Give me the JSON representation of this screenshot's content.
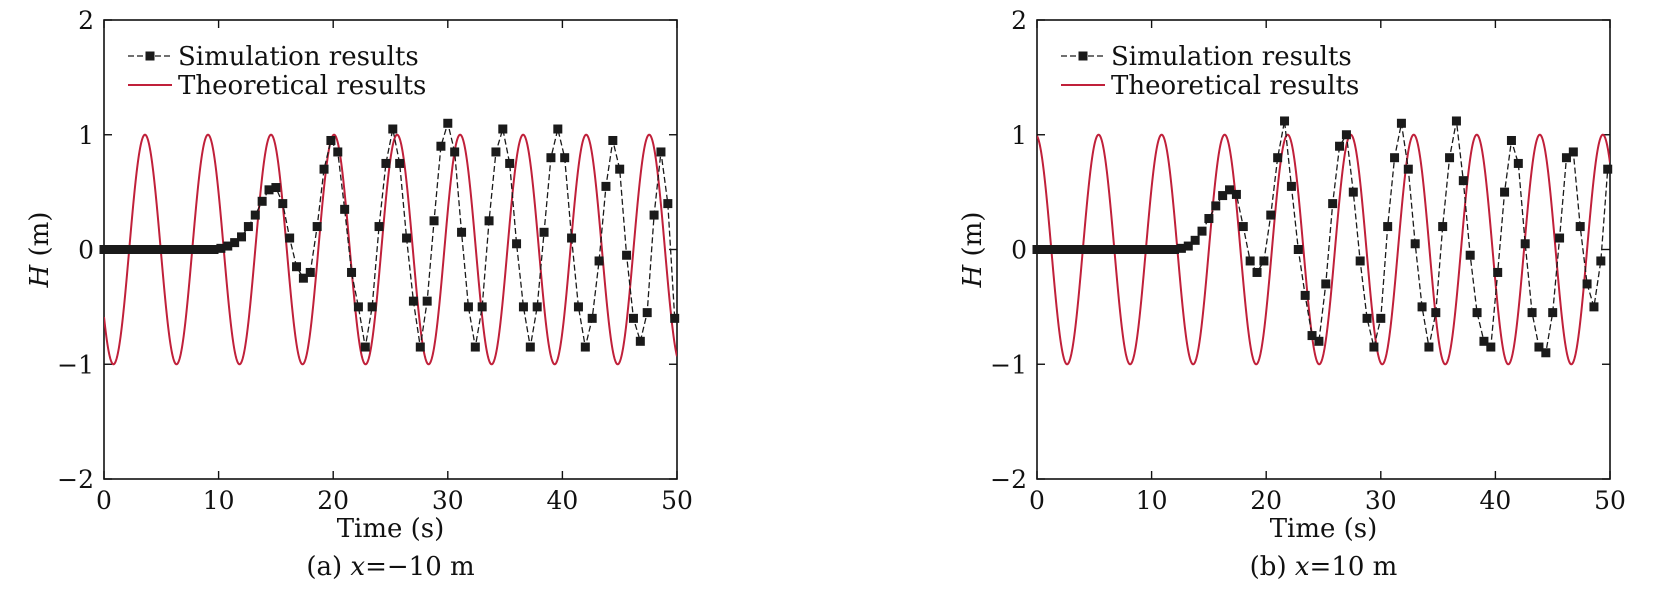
{
  "chart_data": [
    {
      "type": "line",
      "caption_prefix": "(a) ",
      "caption_var": "x",
      "caption_rest": "=−10 m",
      "xlabel": "Time (s)",
      "ylabel_var": "H",
      "ylabel_unit": " (m)",
      "xlim": [
        0,
        50
      ],
      "ylim": [
        -2,
        2
      ],
      "xticks": [
        "0",
        "10",
        "20",
        "30",
        "40",
        "50"
      ],
      "yticks": [
        "−2",
        "−1",
        "0",
        "1",
        "2"
      ],
      "grid": false,
      "legend_position": "top-left",
      "series": [
        {
          "name": "Simulation results",
          "color": "#1a1a1a",
          "marker": "square",
          "x": [
            0,
            0.6,
            1.2,
            1.8,
            2.4,
            3,
            3.6,
            4.2,
            4.8,
            5.4,
            6,
            6.6,
            7.2,
            7.8,
            8.4,
            9,
            9.6,
            10.2,
            10.8,
            11.4,
            12,
            12.6,
            13.2,
            13.8,
            14.4,
            15,
            15.6,
            16.2,
            16.8,
            17.4,
            18,
            18.6,
            19.2,
            19.8,
            20.4,
            21,
            21.6,
            22.2,
            22.8,
            23.4,
            24,
            24.6,
            25.2,
            25.8,
            26.4,
            27,
            27.6,
            28.2,
            28.8,
            29.4,
            30,
            30.6,
            31.2,
            31.8,
            32.4,
            33,
            33.6,
            34.2,
            34.8,
            35.4,
            36,
            36.6,
            37.2,
            37.8,
            38.4,
            39,
            39.6,
            40.2,
            40.8,
            41.4,
            42,
            42.6,
            43.2,
            43.8,
            44.4,
            45,
            45.6,
            46.2,
            46.8,
            47.4,
            48,
            48.6,
            49.2,
            49.8
          ],
          "y": [
            0,
            0,
            0,
            0,
            0,
            0,
            0,
            0,
            0,
            0,
            0,
            0,
            0,
            0,
            0,
            0,
            0,
            0.01,
            0.03,
            0.06,
            0.11,
            0.2,
            0.3,
            0.42,
            0.52,
            0.54,
            0.4,
            0.1,
            -0.15,
            -0.25,
            -0.2,
            0.2,
            0.7,
            0.95,
            0.85,
            0.35,
            -0.2,
            -0.5,
            -0.85,
            -0.5,
            0.2,
            0.75,
            1.05,
            0.75,
            0.1,
            -0.45,
            -0.85,
            -0.45,
            0.25,
            0.9,
            1.1,
            0.85,
            0.15,
            -0.5,
            -0.85,
            -0.5,
            0.25,
            0.85,
            1.05,
            0.75,
            0.05,
            -0.5,
            -0.85,
            -0.5,
            0.15,
            0.8,
            1.05,
            0.8,
            0.1,
            -0.5,
            -0.85,
            -0.6,
            -0.1,
            0.55,
            0.95,
            0.7,
            -0.05,
            -0.6,
            -0.8,
            -0.55,
            0.3,
            0.85,
            0.4,
            -0.6
          ],
          "values_approximate": true
        },
        {
          "name": "Theoretical results",
          "color": "#c0203a",
          "marker": "none",
          "function": "H = sin(2π(t − 2.2)/5.5)",
          "amplitude": 1,
          "period_s": 5.5,
          "phase_shift_s": 2.2
        }
      ]
    },
    {
      "type": "line",
      "caption_prefix": "(b) ",
      "caption_var": "x",
      "caption_rest": "=10 m",
      "xlabel": "Time (s)",
      "ylabel_var": "H",
      "ylabel_unit": " (m)",
      "xlim": [
        0,
        50
      ],
      "ylim": [
        -2,
        2
      ],
      "xticks": [
        "0",
        "10",
        "20",
        "30",
        "40",
        "50"
      ],
      "yticks": [
        "−2",
        "−1",
        "0",
        "1",
        "2"
      ],
      "grid": false,
      "legend_position": "top-left",
      "series": [
        {
          "name": "Simulation results",
          "color": "#1a1a1a",
          "marker": "square",
          "x": [
            0,
            0.6,
            1.2,
            1.8,
            2.4,
            3,
            3.6,
            4.2,
            4.8,
            5.4,
            6,
            6.6,
            7.2,
            7.8,
            8.4,
            9,
            9.6,
            10.2,
            10.8,
            11.4,
            12,
            12.6,
            13.2,
            13.8,
            14.4,
            15,
            15.6,
            16.2,
            16.8,
            17.4,
            18,
            18.6,
            19.2,
            19.8,
            20.4,
            21,
            21.6,
            22.2,
            22.8,
            23.4,
            24,
            24.6,
            25.2,
            25.8,
            26.4,
            27,
            27.6,
            28.2,
            28.8,
            29.4,
            30,
            30.6,
            31.2,
            31.8,
            32.4,
            33,
            33.6,
            34.2,
            34.8,
            35.4,
            36,
            36.6,
            37.2,
            37.8,
            38.4,
            39,
            39.6,
            40.2,
            40.8,
            41.4,
            42,
            42.6,
            43.2,
            43.8,
            44.4,
            45,
            45.6,
            46.2,
            46.8,
            47.4,
            48,
            48.6,
            49.2,
            49.8
          ],
          "y": [
            0,
            0,
            0,
            0,
            0,
            0,
            0,
            0,
            0,
            0,
            0,
            0,
            0,
            0,
            0,
            0,
            0,
            0,
            0,
            0,
            0,
            0.01,
            0.03,
            0.08,
            0.16,
            0.27,
            0.38,
            0.47,
            0.52,
            0.48,
            0.2,
            -0.1,
            -0.2,
            -0.1,
            0.3,
            0.8,
            1.12,
            0.55,
            0.0,
            -0.4,
            -0.75,
            -0.8,
            -0.3,
            0.4,
            0.9,
            1.0,
            0.5,
            -0.1,
            -0.6,
            -0.85,
            -0.6,
            0.2,
            0.8,
            1.1,
            0.7,
            0.05,
            -0.5,
            -0.85,
            -0.55,
            0.2,
            0.8,
            1.12,
            0.6,
            -0.05,
            -0.55,
            -0.8,
            -0.85,
            -0.2,
            0.5,
            0.95,
            0.75,
            0.05,
            -0.55,
            -0.85,
            -0.9,
            -0.55,
            0.1,
            0.8,
            0.85,
            0.2,
            -0.3,
            -0.5,
            -0.1,
            0.7
          ],
          "values_approximate": true
        },
        {
          "name": "Theoretical results",
          "color": "#c0203a",
          "marker": "none",
          "function": "H = sin(2π(t − 4.0)/5.5)",
          "amplitude": 1,
          "period_s": 5.5,
          "phase_shift_s": 4.0
        }
      ]
    }
  ]
}
